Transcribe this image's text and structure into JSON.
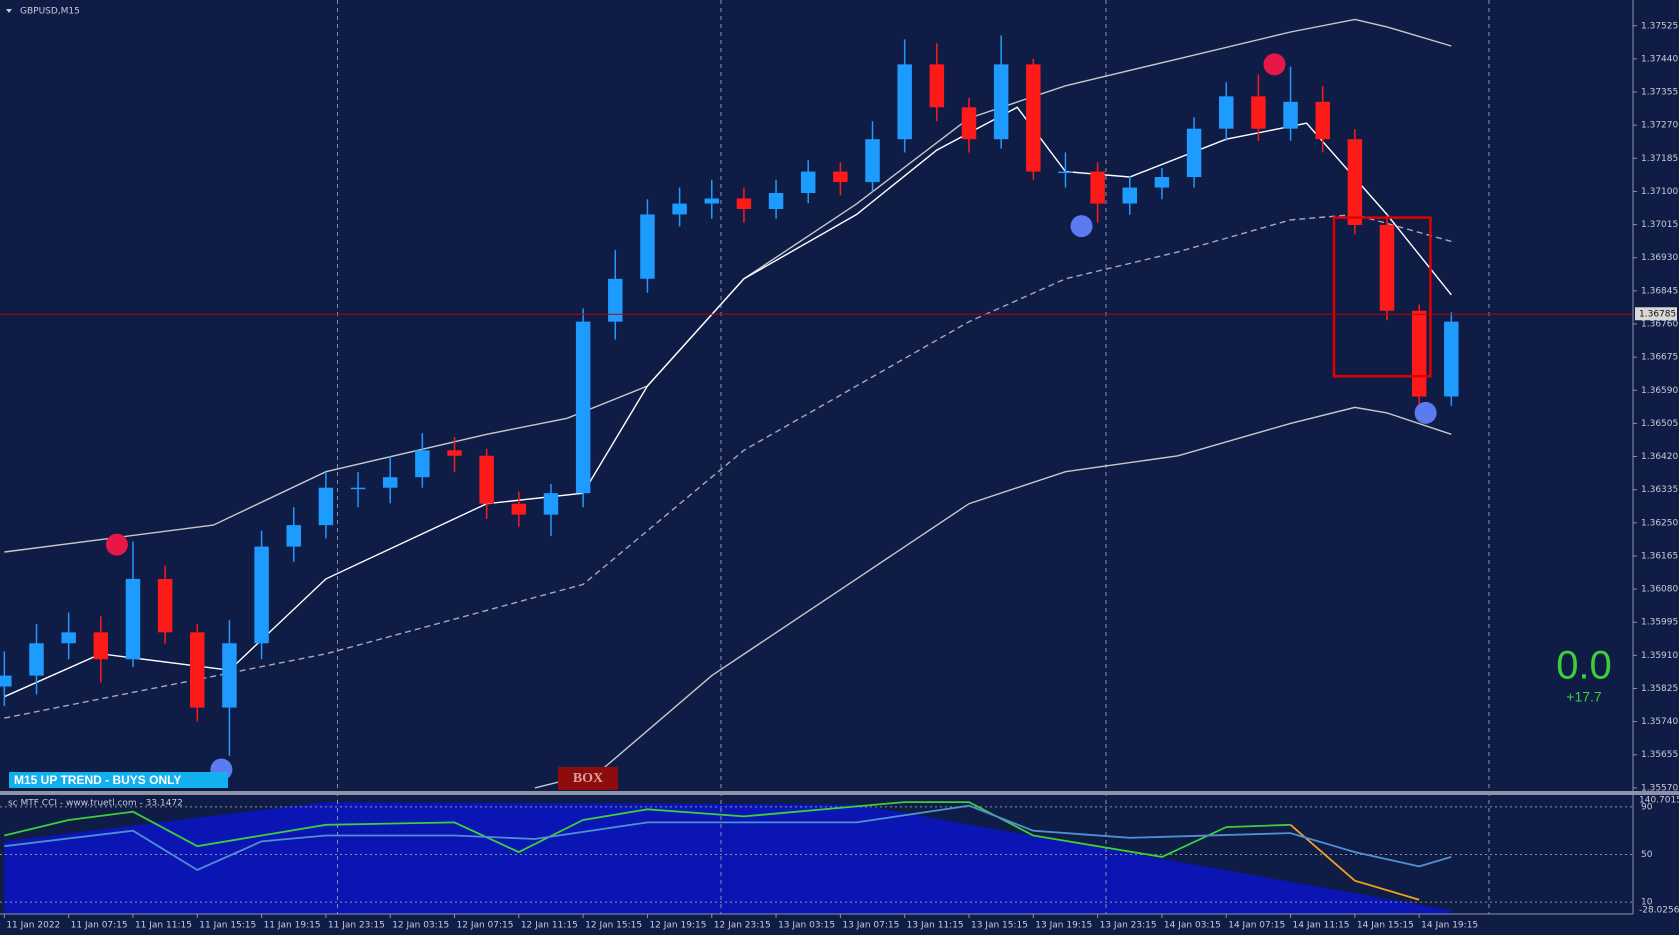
{
  "window": {
    "symbol": "GBPUSD,M15",
    "trend_label": "M15 UP TREND - BUYS ONLY",
    "box_button": "BOX",
    "score": "0.0",
    "score_delta": "+17.7"
  },
  "chart_data": [
    {
      "type": "candlestick",
      "x": [
        0,
        2,
        4,
        6,
        8,
        10,
        12,
        14,
        16,
        18,
        20,
        22,
        24,
        26,
        28,
        30,
        32,
        34,
        36,
        38,
        40,
        42,
        44,
        46,
        48,
        50,
        52,
        54,
        56,
        58,
        60,
        62,
        64,
        66,
        68,
        70,
        72,
        74,
        76,
        78,
        80,
        82,
        84,
        86,
        88,
        90
      ],
      "open": [
        1.3583,
        1.35858,
        1.35941,
        1.35969,
        1.359,
        1.36106,
        1.35969,
        1.35776,
        1.35941,
        1.36189,
        1.36244,
        1.3634,
        1.3634,
        1.36367,
        1.36436,
        1.36422,
        1.36299,
        1.36271,
        1.36326,
        1.36766,
        1.36876,
        1.37041,
        1.37069,
        1.37082,
        1.37055,
        1.37096,
        1.37151,
        1.37124,
        1.37234,
        1.37426,
        1.37316,
        1.37234,
        1.37426,
        1.37151,
        1.37151,
        1.37069,
        1.3711,
        1.37137,
        1.37261,
        1.37344,
        1.37261,
        1.3733,
        1.37234,
        1.37014,
        1.36794,
        1.36574
      ],
      "high": [
        1.3592,
        1.3599,
        1.3602,
        1.3601,
        1.36202,
        1.3614,
        1.3599,
        1.36,
        1.3623,
        1.3629,
        1.3638,
        1.3638,
        1.3642,
        1.3648,
        1.3647,
        1.3644,
        1.3633,
        1.3635,
        1.368,
        1.3695,
        1.3708,
        1.3711,
        1.3713,
        1.3711,
        1.3713,
        1.3718,
        1.37175,
        1.3728,
        1.3749,
        1.3748,
        1.3734,
        1.375,
        1.3744,
        1.372,
        1.37175,
        1.3714,
        1.3716,
        1.3729,
        1.3738,
        1.374,
        1.3742,
        1.3737,
        1.3726,
        1.3704,
        1.3681,
        1.3679
      ],
      "low": [
        1.3578,
        1.3581,
        1.359,
        1.3584,
        1.3588,
        1.3594,
        1.3574,
        1.35652,
        1.359,
        1.3615,
        1.3621,
        1.3629,
        1.363,
        1.3634,
        1.3638,
        1.3626,
        1.3624,
        1.36216,
        1.3629,
        1.3672,
        1.3684,
        1.3701,
        1.3703,
        1.3702,
        1.3703,
        1.3707,
        1.3709,
        1.371,
        1.372,
        1.3728,
        1.372,
        1.3721,
        1.3713,
        1.3711,
        1.3702,
        1.3704,
        1.3708,
        1.3711,
        1.3723,
        1.3723,
        1.3723,
        1.372,
        1.3699,
        1.3677,
        1.36532,
        1.3655
      ],
      "close": [
        1.35858,
        1.35941,
        1.35969,
        1.359,
        1.36106,
        1.35969,
        1.35776,
        1.35941,
        1.36189,
        1.36244,
        1.3634,
        1.3634,
        1.36367,
        1.36436,
        1.36422,
        1.36299,
        1.36271,
        1.36326,
        1.36766,
        1.36876,
        1.37041,
        1.37069,
        1.37082,
        1.37055,
        1.37096,
        1.37151,
        1.37124,
        1.37234,
        1.37426,
        1.37316,
        1.37234,
        1.37426,
        1.37151,
        1.37151,
        1.37069,
        1.3711,
        1.37137,
        1.37261,
        1.37344,
        1.37261,
        1.3733,
        1.37234,
        1.37014,
        1.36794,
        1.36574,
        1.36766
      ],
      "up_color": "#1e9bff",
      "down_color": "#ff1a1a",
      "xlim": [
        -0.27,
        101.3
      ],
      "ylim": [
        1.35562,
        1.37586
      ],
      "yticks": [
        1.37525,
        {
          "value": 1.3744,
          "label": "1.37440"
        },
        1.37355,
        {
          "value": 1.3727,
          "label": "1.37270"
        },
        1.37185,
        {
          "value": 1.371,
          "label": "1.37100"
        },
        1.37015,
        {
          "value": 1.3693,
          "label": "1.36930"
        },
        1.36845,
        {
          "value": 1.3676,
          "label": "1.36760"
        },
        1.36675,
        {
          "value": 1.3659,
          "label": "1.36590"
        },
        1.36505,
        {
          "value": 1.3642,
          "label": "1.36420"
        },
        1.36335,
        {
          "value": 1.3625,
          "label": "1.36250"
        },
        1.36165,
        {
          "value": 1.3608,
          "label": "1.36080"
        },
        1.35995,
        {
          "value": 1.3591,
          "label": "1.35910"
        },
        1.35825,
        {
          "value": 1.3574,
          "label": "1.35740"
        },
        1.35655,
        {
          "value": 1.3557,
          "label": "1.35570"
        }
      ],
      "xticks": [
        {
          "value": 0,
          "label": "11 Jan 2022"
        },
        {
          "value": 4,
          "label": "11 Jan 07:15"
        },
        {
          "value": 8,
          "label": "11 Jan 11:15"
        },
        {
          "value": 12,
          "label": "11 Jan 15:15"
        },
        {
          "value": 16,
          "label": "11 Jan 19:15"
        },
        {
          "value": 20,
          "label": "11 Jan 23:15"
        },
        {
          "value": 24,
          "label": "12 Jan 03:15"
        },
        {
          "value": 28,
          "label": "12 Jan 07:15"
        },
        {
          "value": 32,
          "label": "12 Jan 11:15"
        },
        {
          "value": 36,
          "label": "12 Jan 15:15"
        },
        {
          "value": 40,
          "label": "12 Jan 19:15"
        },
        {
          "value": 44,
          "label": "12 Jan 23:15"
        },
        {
          "value": 48,
          "label": "13 Jan 03:15"
        },
        {
          "value": 52,
          "label": "13 Jan 07:15"
        },
        {
          "value": 56,
          "label": "13 Jan 11:15"
        },
        {
          "value": 60,
          "label": "13 Jan 15:15"
        },
        {
          "value": 64,
          "label": "13 Jan 19:15"
        },
        {
          "value": 68,
          "label": "13 Jan 23:15"
        },
        {
          "value": 72,
          "label": "14 Jan 03:15"
        },
        {
          "value": 76,
          "label": "14 Jan 07:15"
        },
        {
          "value": 80,
          "label": "14 Jan 11:15"
        },
        {
          "value": 84,
          "label": "14 Jan 15:15"
        },
        {
          "value": 88,
          "label": "14 Jan 19:15"
        }
      ],
      "current_price": {
        "value": 1.36785,
        "label": "1.36785",
        "color": "#c00000"
      },
      "lines": [
        {
          "color": "#c8c8c8",
          "x": [
            0,
            13,
            20,
            30,
            35,
            40,
            46,
            53,
            60,
            66,
            73,
            80,
            84,
            86,
            90
          ],
          "values": [
            1.36175,
            1.36244,
            1.36381,
            1.36477,
            1.36518,
            1.36601,
            1.36876,
            1.37068,
            1.37288,
            1.37371,
            1.3744,
            1.37509,
            1.37541,
            1.37522,
            1.37473
          ]
        },
        {
          "color": "#c8c8c8",
          "x": [
            33,
            37,
            44,
            53,
            60,
            66,
            73,
            80,
            84,
            86,
            90
          ],
          "values": [
            1.3557,
            1.35611,
            1.35858,
            1.36106,
            1.36299,
            1.36381,
            1.36422,
            1.36505,
            1.36546,
            1.36532,
            1.36477
          ]
        },
        {
          "color": "#a8a8b8",
          "dash": true,
          "x": [
            0,
            20,
            36,
            46,
            60,
            66,
            73,
            80,
            84,
            90
          ],
          "values": [
            1.35749,
            1.35914,
            1.36092,
            1.36436,
            1.36766,
            1.36876,
            1.36945,
            1.37027,
            1.37041,
            1.36972
          ]
        },
        {
          "color": "#ffffff",
          "x": [
            0,
            6,
            14,
            20,
            30,
            36,
            40,
            46,
            53,
            58,
            63,
            66,
            70,
            76,
            81,
            86,
            90
          ],
          "values": [
            1.35804,
            1.35914,
            1.35872,
            1.36106,
            1.36299,
            1.36326,
            1.36601,
            1.36876,
            1.37041,
            1.37206,
            1.37316,
            1.37151,
            1.37137,
            1.37234,
            1.37275,
            1.37041,
            1.36835
          ]
        }
      ],
      "signals": [
        {
          "color": "#e8174a",
          "x": [
            7,
            79
          ],
          "values": [
            1.36194,
            1.37426
          ]
        },
        {
          "color": "#5b7cf0",
          "x": [
            13.5,
            67,
            88.4
          ],
          "values": [
            1.35617,
            1.37011,
            1.36532
          ]
        }
      ],
      "box": {
        "color": "#e00000",
        "x": [
          82.7,
          88.7
        ],
        "y": [
          1.37033,
          1.36626
        ]
      }
    },
    {
      "type": "line",
      "title": "sc MTF CCI - www.truetl.com - 33.1472",
      "xlim": [
        -0.27,
        101.3
      ],
      "ylim": [
        0,
        100
      ],
      "yticks": [
        90,
        50,
        10
      ],
      "max_label": "140.7015",
      "min_label": "-28.0256",
      "area": {
        "color": "#0a14c8",
        "x": [
          0,
          20,
          53,
          90
        ],
        "values": [
          61,
          94,
          92,
          3
        ]
      },
      "series": [
        {
          "color": "#3ccf3c",
          "x": [
            0,
            4,
            8,
            12,
            20,
            28,
            32,
            36,
            40,
            46,
            56,
            60,
            64,
            72,
            76,
            80
          ],
          "values": [
            66,
            79,
            86,
            57,
            75,
            77,
            52,
            79,
            88,
            82,
            94,
            94,
            66,
            48,
            73,
            75
          ]
        },
        {
          "color": "#f0a020",
          "x": [
            80,
            84,
            88
          ],
          "values": [
            75,
            28,
            12
          ]
        },
        {
          "color": "#4f8fd0",
          "x": [
            0,
            8,
            12,
            16,
            20,
            28,
            33,
            40,
            53,
            60,
            64,
            70,
            80,
            84,
            88,
            90
          ],
          "values": [
            57,
            70,
            37,
            61,
            66,
            66,
            63,
            77,
            77,
            91,
            70,
            64,
            68,
            52,
            40,
            48
          ]
        }
      ]
    }
  ]
}
